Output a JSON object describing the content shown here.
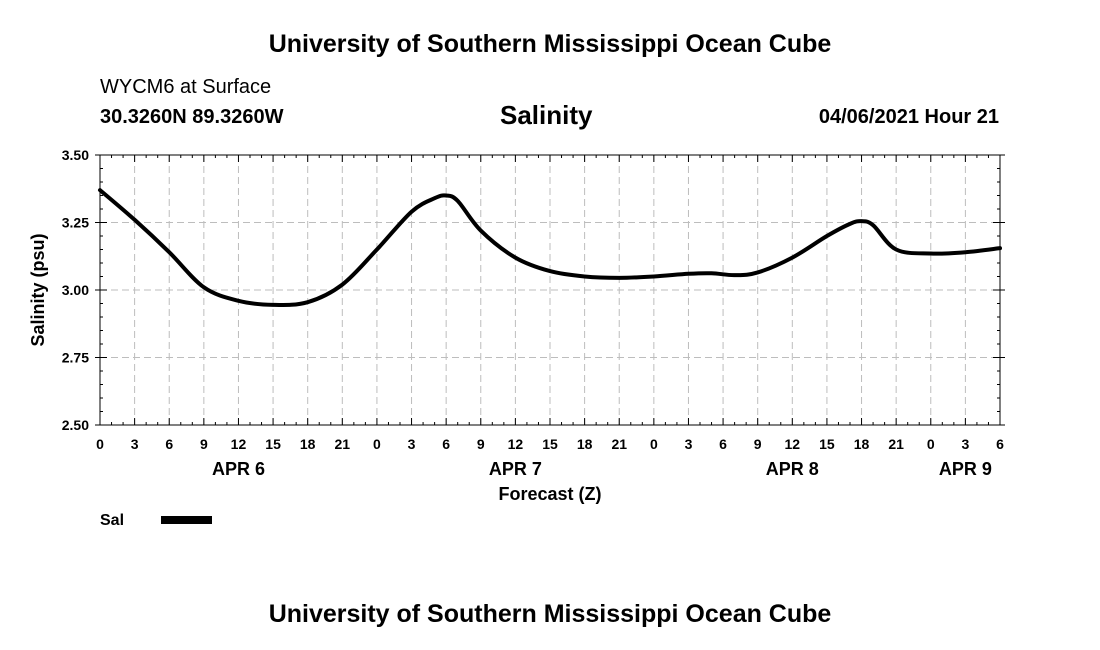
{
  "header": {
    "title_top": "University of Southern Mississippi Ocean Cube",
    "title_bottom": "University of Southern Mississippi Ocean Cube",
    "station": "WYCM6 at Surface",
    "coords": "30.3260N  89.3260W",
    "plot_title": "Salinity",
    "date": "04/06/2021 Hour 21"
  },
  "chart_data": {
    "type": "line",
    "title": "Salinity",
    "xlabel": "Forecast (Z)",
    "ylabel": "Salinity (psu)",
    "ylim": [
      2.5,
      3.5
    ],
    "y_ticks": [
      "2.50",
      "2.75",
      "3.00",
      "3.25",
      "3.50"
    ],
    "y_tick_values": [
      2.5,
      2.75,
      3.0,
      3.25,
      3.5
    ],
    "xlim": [
      0,
      78
    ],
    "x_tick_labels": [
      "0",
      "3",
      "6",
      "9",
      "12",
      "15",
      "18",
      "21",
      "0",
      "3",
      "6",
      "9",
      "12",
      "15",
      "18",
      "21",
      "0",
      "3",
      "6",
      "9",
      "12",
      "15",
      "18",
      "21",
      "0",
      "3",
      "6"
    ],
    "day_labels": [
      {
        "label": "APR 6",
        "hour": 12
      },
      {
        "label": "APR 7",
        "hour": 36
      },
      {
        "label": "APR 8",
        "hour": 60
      },
      {
        "label": "APR 9",
        "hour": 75
      }
    ],
    "grid": true,
    "series": [
      {
        "name": "Sal",
        "x": [
          0,
          3,
          6,
          9,
          12,
          15,
          18,
          21,
          24,
          27,
          29,
          30,
          31,
          33,
          36,
          39,
          42,
          45,
          48,
          51,
          53,
          55,
          57,
          60,
          63,
          65,
          66,
          67,
          69,
          72,
          75,
          78
        ],
        "values": [
          3.37,
          3.26,
          3.14,
          3.01,
          2.96,
          2.945,
          2.955,
          3.02,
          3.15,
          3.29,
          3.34,
          3.35,
          3.33,
          3.22,
          3.12,
          3.07,
          3.05,
          3.045,
          3.05,
          3.06,
          3.062,
          3.055,
          3.065,
          3.12,
          3.2,
          3.245,
          3.255,
          3.24,
          3.15,
          3.135,
          3.14,
          3.155
        ]
      }
    ],
    "legend": [
      {
        "label": "Sal"
      }
    ]
  }
}
